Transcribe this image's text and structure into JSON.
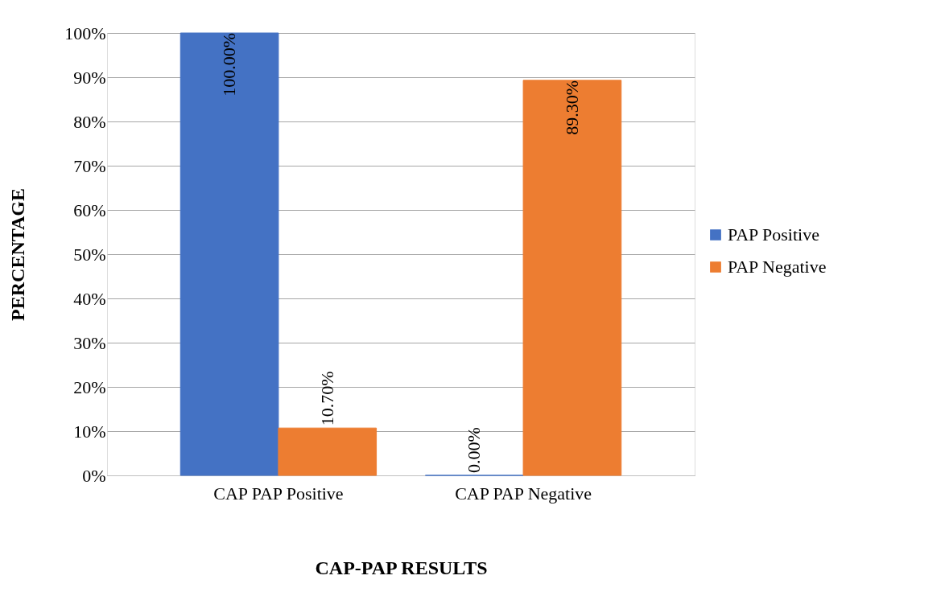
{
  "chart_data": {
    "type": "bar",
    "xlabel": "CAP-PAP RESULTS",
    "ylabel": "PERCENTAGE",
    "categories": [
      "CAP PAP Positive",
      "CAP PAP Negative"
    ],
    "series": [
      {
        "name": "PAP Positive",
        "color": "#4472c4",
        "values": [
          100,
          0
        ],
        "value_labels": [
          "100.00%",
          "0.00%"
        ]
      },
      {
        "name": "PAP Negative",
        "color": "#ed7d31",
        "values": [
          10.7,
          89.3
        ],
        "value_labels": [
          "10.70%",
          "89.30%"
        ]
      }
    ],
    "ylim": [
      0,
      100
    ],
    "yticks": [
      {
        "value": 0,
        "label": "0%"
      },
      {
        "value": 10,
        "label": "10%"
      },
      {
        "value": 20,
        "label": "20%"
      },
      {
        "value": 30,
        "label": "30%"
      },
      {
        "value": 40,
        "label": "40%"
      },
      {
        "value": 50,
        "label": "50%"
      },
      {
        "value": 60,
        "label": "60%"
      },
      {
        "value": 70,
        "label": "70%"
      },
      {
        "value": 80,
        "label": "80%"
      },
      {
        "value": 90,
        "label": "90%"
      },
      {
        "value": 100,
        "label": "100%"
      }
    ],
    "grid": "y",
    "legend": "right"
  }
}
